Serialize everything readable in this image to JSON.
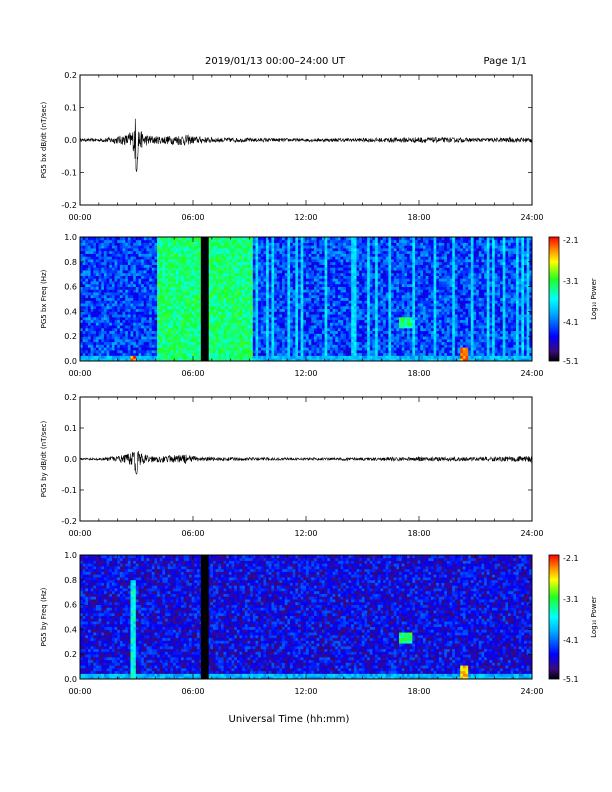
{
  "header": {
    "date_range": "2019/01/13  00:00–24:00 UT",
    "page": "Page 1/1"
  },
  "xaxis_label": "Universal Time (hh:mm)",
  "xticks": [
    "00:00",
    "06:00",
    "12:00",
    "18:00",
    "24:00"
  ],
  "colorbar": {
    "label": "Log₁₀ Power",
    "ticks": [
      "-2.1",
      "-3.1",
      "-4.1",
      "-5.1"
    ],
    "range": [
      -5.1,
      -2.1
    ]
  },
  "chart_data": [
    {
      "type": "line",
      "ylabel": "PG5 bx dB/dt (nT/sec)",
      "ylim": [
        -0.2,
        0.2
      ],
      "yticks": [
        "0.2",
        "0.1",
        "0.0",
        "-0.1",
        "-0.2"
      ],
      "xlim": [
        "00:00",
        "24:00"
      ],
      "series": [
        {
          "x": [
            "00:00",
            "01:00",
            "02:00",
            "02:30",
            "02:50",
            "03:00",
            "03:10",
            "03:30",
            "04:00",
            "05:00",
            "05:30",
            "06:00",
            "07:00",
            "09:00",
            "12:00",
            "15:00",
            "18:00",
            "21:00",
            "24:00"
          ],
          "amplitude": [
            0.004,
            0.005,
            0.012,
            0.018,
            0.035,
            0.1,
            0.03,
            0.018,
            0.012,
            0.014,
            0.018,
            0.012,
            0.008,
            0.006,
            0.005,
            0.006,
            0.009,
            0.006,
            0.008
          ]
        }
      ]
    },
    {
      "type": "heatmap",
      "ylabel": "PG5 bx Freq (Hz)",
      "ylim": [
        0.0,
        1.0
      ],
      "yticks": [
        "1.0",
        "0.8",
        "0.6",
        "0.4",
        "0.2",
        "0.0"
      ],
      "xlim": [
        "00:00",
        "24:00"
      ],
      "features": [
        {
          "x": [
            "04:05",
            "09:10"
          ],
          "y": [
            0.0,
            1.0
          ],
          "log_power": -3.3
        },
        {
          "x": [
            "06:25",
            "06:50"
          ],
          "y": [
            0.0,
            1.0
          ],
          "log_power": "data gap"
        },
        {
          "x": [
            "17:00",
            "17:40"
          ],
          "y": [
            0.26,
            0.36
          ],
          "log_power": -3.3
        },
        {
          "x": [
            "20:15",
            "20:35"
          ],
          "y": [
            0.0,
            0.12
          ],
          "log_power": -2.4
        },
        {
          "x": [
            "02:40",
            "03:00"
          ],
          "y": [
            0.0,
            0.05
          ],
          "log_power": -2.3
        }
      ]
    },
    {
      "type": "line",
      "ylabel": "PG5 by dB/dt (nT/sec)",
      "ylim": [
        -0.2,
        0.2
      ],
      "yticks": [
        "0.2",
        "0.1",
        "0.0",
        "-0.1",
        "-0.2"
      ],
      "xlim": [
        "00:00",
        "24:00"
      ],
      "series": [
        {
          "x": [
            "00:00",
            "01:00",
            "02:00",
            "02:30",
            "02:50",
            "03:00",
            "03:10",
            "03:30",
            "04:00",
            "05:00",
            "05:30",
            "06:00",
            "07:00",
            "09:00",
            "12:00",
            "15:00",
            "18:00",
            "21:00",
            "24:00"
          ],
          "amplitude": [
            0.003,
            0.004,
            0.01,
            0.015,
            0.025,
            0.05,
            0.02,
            0.014,
            0.01,
            0.012,
            0.016,
            0.01,
            0.006,
            0.005,
            0.004,
            0.005,
            0.007,
            0.006,
            0.01
          ]
        }
      ]
    },
    {
      "type": "heatmap",
      "ylabel": "PG5 by Freq (Hz)",
      "ylim": [
        0.0,
        1.0
      ],
      "yticks": [
        "1.0",
        "0.8",
        "0.6",
        "0.4",
        "0.2",
        "0.0"
      ],
      "xlim": [
        "00:00",
        "24:00"
      ],
      "features": [
        {
          "x": [
            "06:25",
            "06:50"
          ],
          "y": [
            0.0,
            1.0
          ],
          "log_power": "data gap"
        },
        {
          "x": [
            "17:00",
            "17:40"
          ],
          "y": [
            0.28,
            0.38
          ],
          "log_power": -3.3
        },
        {
          "x": [
            "20:15",
            "20:35"
          ],
          "y": [
            0.0,
            0.12
          ],
          "log_power": -2.6
        },
        {
          "x": [
            "02:40",
            "03:00"
          ],
          "y": [
            0.0,
            0.8
          ],
          "log_power": -3.6
        }
      ]
    }
  ]
}
